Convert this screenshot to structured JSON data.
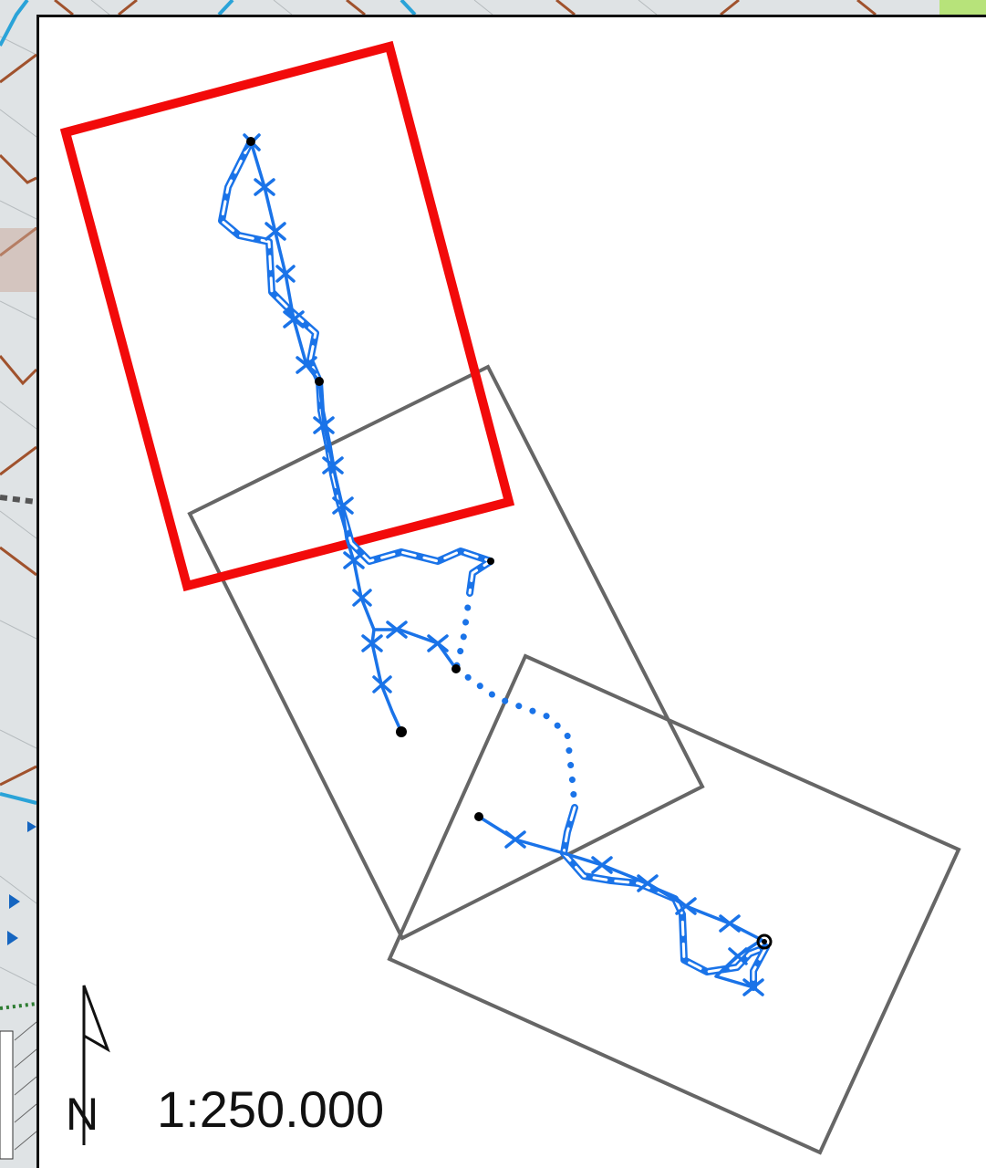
{
  "scale_label": "1:250.000",
  "north_label": "N",
  "colors": {
    "primary_frame": "#f20a0a",
    "secondary_frame": "#666666",
    "route_line": "#1a73e8",
    "route_casing": "#ffffff",
    "node": "#000000",
    "bg_parcel_edge": "#a0522d",
    "bg_road": "#2aa3d8"
  },
  "icons": [
    "north-arrow-icon"
  ]
}
